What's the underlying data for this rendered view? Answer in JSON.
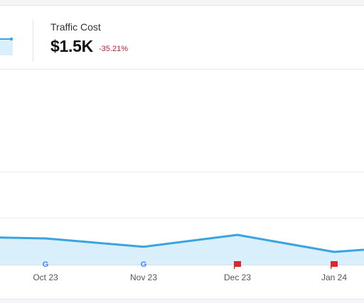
{
  "metric": {
    "label": "Traffic Cost",
    "value": "$1.5K",
    "change": "-35.21%"
  },
  "colors": {
    "line": "#3aa3e0",
    "fill": "#d9effb",
    "negative": "#b0283a",
    "flag": "#e0262b",
    "grid": "#e7e9ec"
  },
  "chart_data": {
    "type": "area",
    "x_ticks": [
      "Oct 23",
      "Nov 23",
      "Dec 23",
      "Jan 24"
    ],
    "series": [
      {
        "values": [
          1.0,
          0.97,
          0.66,
          1.1,
          0.47,
          0.55
        ]
      }
    ]
  },
  "markers": [
    {
      "type": "google",
      "icon": "google-icon",
      "glyph": "G"
    },
    {
      "type": "google",
      "icon": "google-icon",
      "glyph": "G"
    },
    {
      "type": "flag",
      "icon": "flag-icon"
    },
    {
      "type": "flag",
      "icon": "flag-icon"
    }
  ]
}
